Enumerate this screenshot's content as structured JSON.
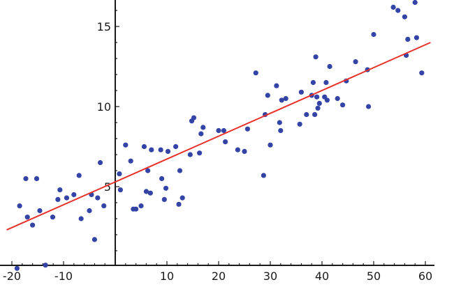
{
  "chart_data": {
    "type": "scatter",
    "title": "",
    "xlabel": "",
    "ylabel": "",
    "xlim": [
      -21,
      62
    ],
    "ylim": [
      -0.5,
      16.7
    ],
    "x_ticks": [
      -20,
      -10,
      10,
      20,
      30,
      40,
      50,
      60
    ],
    "x_tick_labels": [
      "-20",
      "-10",
      "10",
      "20",
      "30",
      "40",
      "50",
      "60"
    ],
    "y_ticks": [
      5,
      10,
      15
    ],
    "y_tick_labels": [
      "5",
      "10",
      "15"
    ],
    "grid": false,
    "legend": "none",
    "colors": {
      "points": "#3344a6",
      "fit_line": "#e8302a",
      "axes": "#1a1a1a"
    },
    "series": [
      {
        "kind": "points",
        "x": [
          -19,
          -18.5,
          -17.3,
          -17,
          -16,
          -15.2,
          -14.6,
          -13.5,
          -12.1,
          -11.1,
          -10.7,
          -9.4,
          -8,
          -7,
          -6.6,
          -5,
          -4.6,
          -4,
          -3.4,
          -2.9,
          -2.2,
          0.8,
          1,
          2,
          3,
          3.5,
          4,
          5,
          5.6,
          6,
          6.3,
          6.8,
          7,
          8.8,
          9,
          9.5,
          9.8,
          10.2,
          11.7,
          12.3,
          12.5,
          13,
          14.5,
          14.8,
          15.2,
          16.3,
          16.6,
          17,
          20,
          21,
          21.3,
          23.7,
          25,
          25.6,
          27.2,
          28.7,
          29,
          29.5,
          30,
          31.2,
          31.8,
          32,
          32.2,
          33,
          35.7,
          36,
          37,
          38,
          38.3,
          38.6,
          38.8,
          39,
          39.2,
          39.5,
          40.5,
          40.8,
          41,
          41.5,
          43,
          44,
          44.7,
          46.5,
          48.8,
          49,
          50,
          53.8,
          54.7,
          56,
          56.3,
          56.6,
          58,
          58.3,
          59.3
        ],
        "y": [
          -0.1,
          3.8,
          5.5,
          3.1,
          2.6,
          5.5,
          3.5,
          0.1,
          3.1,
          4.2,
          4.8,
          4.3,
          4.5,
          5.7,
          3,
          3.5,
          4.5,
          1.7,
          4.3,
          6.5,
          3.8,
          5.8,
          4.8,
          7.6,
          6.6,
          3.6,
          3.6,
          3.8,
          7.5,
          4.7,
          6,
          4.6,
          7.3,
          7.3,
          5.5,
          4.2,
          4.9,
          7.2,
          7.5,
          3.9,
          6,
          4.3,
          7,
          9.1,
          9.3,
          7.1,
          8.3,
          8.7,
          8.5,
          8.5,
          7.8,
          7.3,
          7.2,
          8.6,
          12.1,
          5.7,
          9.5,
          10.7,
          7.6,
          11.3,
          9,
          8.5,
          10.4,
          10.5,
          8.9,
          10.9,
          9.5,
          10.7,
          11.5,
          9.5,
          13.1,
          10.6,
          9.9,
          10.2,
          10.6,
          11.5,
          10.4,
          12.5,
          10.5,
          10.1,
          11.6,
          12.8,
          12.3,
          10,
          14.5,
          16.2,
          16,
          15.6,
          13.2,
          14.2,
          16.5,
          14.3,
          12.1
        ]
      },
      {
        "kind": "fit-line",
        "x": [
          -21,
          61
        ],
        "y": [
          2.3,
          14
        ]
      }
    ]
  }
}
